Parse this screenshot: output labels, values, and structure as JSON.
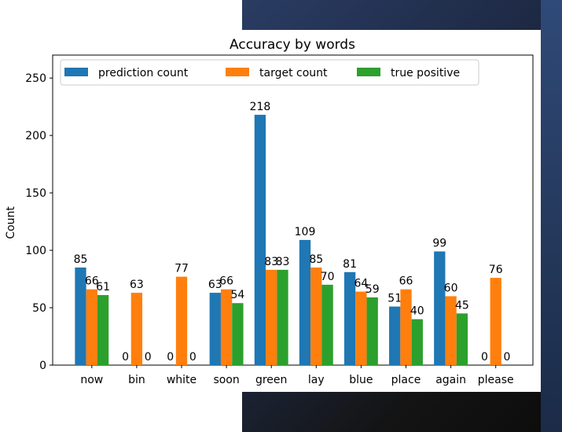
{
  "chart_data": {
    "type": "bar",
    "title": "Accuracy by words",
    "xlabel": "",
    "ylabel": "Count",
    "ylim": [
      0,
      270
    ],
    "yticks": [
      0,
      50,
      100,
      150,
      200,
      250
    ],
    "categories": [
      "now",
      "bin",
      "white",
      "soon",
      "green",
      "lay",
      "blue",
      "place",
      "again",
      "please"
    ],
    "series": [
      {
        "name": "prediction count",
        "color": "#1f77b4",
        "values": [
          85,
          0,
          0,
          63,
          218,
          109,
          81,
          51,
          99,
          0
        ]
      },
      {
        "name": "target count",
        "color": "#ff7f0e",
        "values": [
          66,
          63,
          77,
          66,
          83,
          85,
          64,
          66,
          60,
          76
        ]
      },
      {
        "name": "true positive",
        "color": "#2ca02c",
        "values": [
          61,
          0,
          0,
          54,
          83,
          70,
          59,
          40,
          45,
          0
        ]
      }
    ],
    "legend_position": "top",
    "grid": false
  }
}
